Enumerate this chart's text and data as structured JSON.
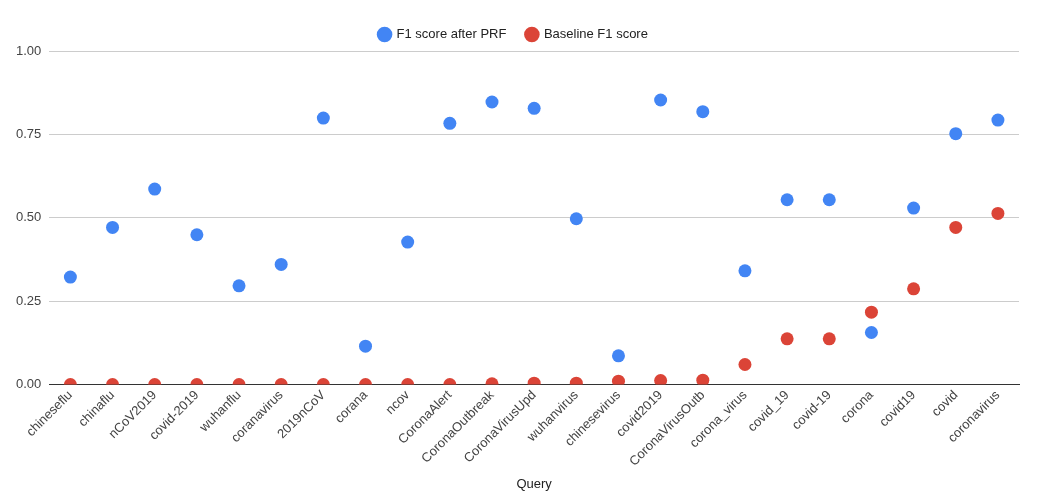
{
  "chart_data": {
    "type": "scatter",
    "xlabel": "Query",
    "categories": [
      "chineseflu",
      "chinaflu",
      "nCoV2019",
      "covid-2019",
      "wuhanflu",
      "coranavirus",
      "2019nCoV",
      "corana",
      "ncov",
      "CoronaAlert",
      "CoronaOutbreak",
      "CoronaVirusUpd",
      "wuhanvirus",
      "chinesevirus",
      "covid2019",
      "CoronaVirusOutb",
      "corona_virus",
      "covid_19",
      "covid-19",
      "corona",
      "covid19",
      "covid",
      "coronavirus"
    ],
    "series": [
      {
        "name": "F1 score after PRF",
        "color": "#4285f4",
        "values": [
          0.322,
          0.471,
          0.586,
          0.449,
          0.296,
          0.36,
          0.799,
          0.115,
          0.427,
          0.783,
          0.847,
          0.828,
          0.497,
          0.086,
          0.853,
          0.818,
          0.341,
          0.554,
          0.554,
          0.156,
          0.529,
          0.752,
          0.793
        ]
      },
      {
        "name": "Baseline F1 score",
        "color": "#db4437",
        "values": [
          0,
          0,
          0,
          0,
          0,
          0,
          0,
          0,
          0,
          0,
          0.002,
          0.004,
          0.004,
          0.01,
          0.012,
          0.013,
          0.06,
          0.137,
          0.137,
          0.217,
          0.287,
          0.471,
          0.513
        ]
      }
    ],
    "ylim": [
      0,
      1
    ],
    "yticks": [
      {
        "value": 0,
        "label": "0.00"
      },
      {
        "value": 0.25,
        "label": "0.25"
      },
      {
        "value": 0.5,
        "label": "0.50"
      },
      {
        "value": 0.75,
        "label": "0.75"
      },
      {
        "value": 1,
        "label": "1.00"
      }
    ],
    "grid": "y",
    "legend": "top",
    "marker": "circle"
  }
}
